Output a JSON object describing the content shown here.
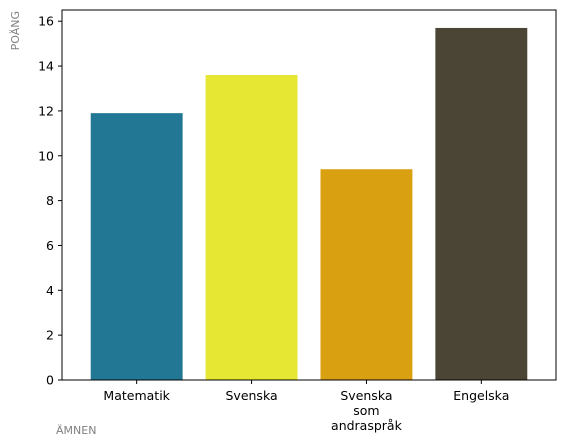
{
  "chart_data": {
    "type": "bar",
    "title": "",
    "xlabel": "ÄMNEN",
    "ylabel": "POÄNG",
    "categories": [
      [
        "Matematik"
      ],
      [
        "Svenska"
      ],
      [
        "Svenska",
        "som",
        "andraspråk"
      ],
      [
        "Engelska"
      ]
    ],
    "values": [
      11.9,
      13.6,
      9.4,
      15.7
    ],
    "colors": [
      "#227795",
      "#e6e732",
      "#d9a012",
      "#4b4535"
    ],
    "ylim": [
      0,
      16.5
    ],
    "yticks": [
      0,
      2,
      4,
      6,
      8,
      10,
      12,
      14,
      16
    ],
    "grid": false,
    "legend": false
  }
}
